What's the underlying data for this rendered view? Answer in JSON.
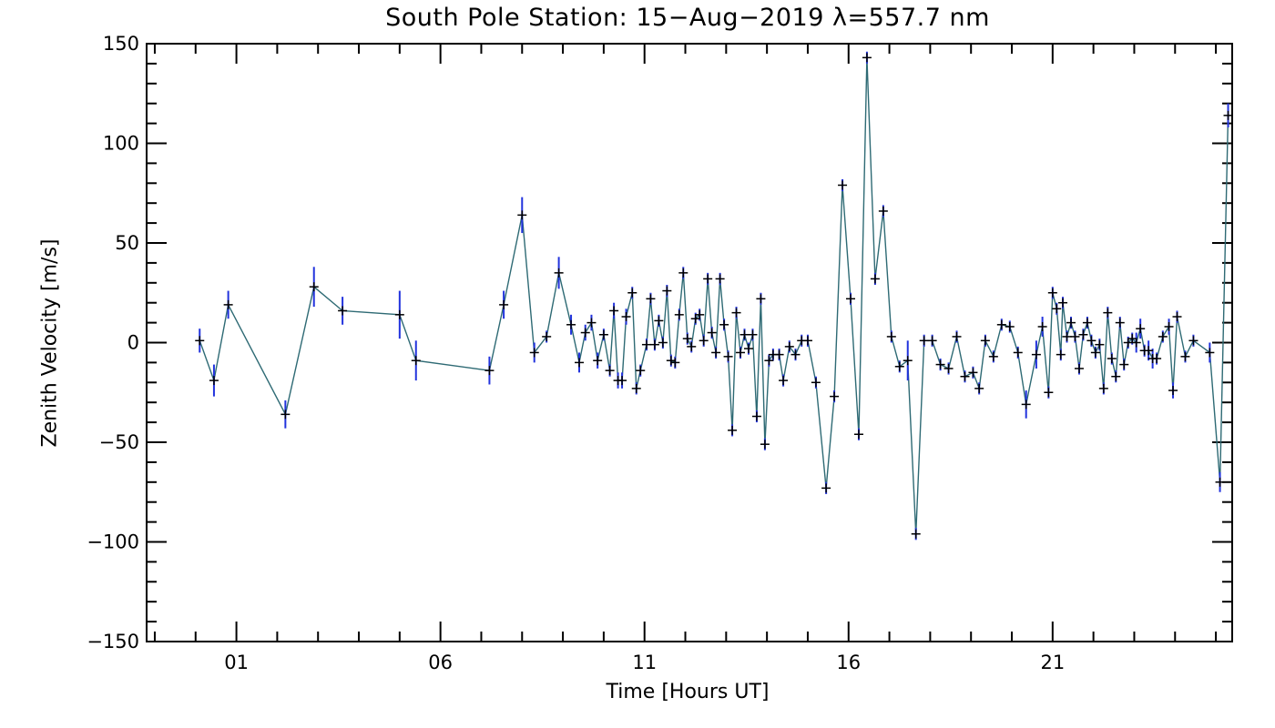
{
  "chart_data": {
    "type": "scatter",
    "title": "South Pole Station: 15−Aug−2019 λ=557.7 nm",
    "xlabel": "Time [Hours UT]",
    "ylabel": "Zenith Velocity [m/s]",
    "xlim": [
      -1.2,
      25.4
    ],
    "ylim": [
      -150,
      150
    ],
    "x_ticks": [
      1,
      6,
      11,
      16,
      21
    ],
    "x_tick_labels": [
      "01",
      "06",
      "11",
      "16",
      "21"
    ],
    "y_ticks": [
      -150,
      -100,
      -50,
      0,
      50,
      100,
      150
    ],
    "y_tick_labels": [
      "−150",
      "−100",
      "−50",
      "0",
      "50",
      "100",
      "150"
    ],
    "grid": false,
    "line_color": "#2e6a74",
    "errorbar_color": "#2233dd",
    "marker_color": "#000000",
    "series": [
      {
        "points": [
          [
            0.1,
            1,
            6
          ],
          [
            0.45,
            -19,
            8
          ],
          [
            0.8,
            19,
            7
          ],
          [
            2.2,
            -36,
            7
          ],
          [
            2.9,
            28,
            10
          ],
          [
            3.6,
            16,
            7
          ],
          [
            5.0,
            14,
            12
          ],
          [
            5.4,
            -9,
            10
          ],
          [
            7.2,
            -14,
            7
          ],
          [
            7.55,
            19,
            7
          ],
          [
            8.0,
            64,
            9
          ],
          [
            8.3,
            -5,
            5
          ],
          [
            8.6,
            3,
            3
          ],
          [
            8.9,
            35,
            8
          ],
          [
            9.2,
            9,
            5
          ],
          [
            9.4,
            -10,
            5
          ],
          [
            9.55,
            5,
            4
          ],
          [
            9.7,
            10,
            4
          ],
          [
            9.85,
            -9,
            4
          ],
          [
            10.0,
            4,
            3
          ],
          [
            10.15,
            -14,
            3
          ],
          [
            10.25,
            16,
            4
          ],
          [
            10.35,
            -19,
            4
          ],
          [
            10.45,
            -19,
            4
          ],
          [
            10.55,
            13,
            4
          ],
          [
            10.7,
            25,
            3
          ],
          [
            10.8,
            -23,
            3
          ],
          [
            10.9,
            -14,
            3
          ],
          [
            11.05,
            -1,
            3
          ],
          [
            11.15,
            22,
            3
          ],
          [
            11.25,
            -1,
            3
          ],
          [
            11.35,
            11,
            3
          ],
          [
            11.45,
            0,
            3
          ],
          [
            11.55,
            26,
            3
          ],
          [
            11.65,
            -9,
            3
          ],
          [
            11.75,
            -10,
            3
          ],
          [
            11.85,
            14,
            3
          ],
          [
            11.95,
            35,
            3
          ],
          [
            12.05,
            2,
            3
          ],
          [
            12.15,
            -2,
            3
          ],
          [
            12.25,
            12,
            3
          ],
          [
            12.35,
            14,
            3
          ],
          [
            12.45,
            1,
            3
          ],
          [
            12.55,
            32,
            3
          ],
          [
            12.65,
            5,
            3
          ],
          [
            12.75,
            -5,
            3
          ],
          [
            12.85,
            32,
            3
          ],
          [
            12.95,
            9,
            3
          ],
          [
            13.05,
            -7,
            3
          ],
          [
            13.15,
            -44,
            3
          ],
          [
            13.25,
            15,
            3
          ],
          [
            13.35,
            -5,
            3
          ],
          [
            13.45,
            4,
            3
          ],
          [
            13.55,
            -3,
            3
          ],
          [
            13.65,
            4,
            3
          ],
          [
            13.75,
            -37,
            3
          ],
          [
            13.85,
            22,
            3
          ],
          [
            13.95,
            -51,
            3
          ],
          [
            14.05,
            -9,
            3
          ],
          [
            14.15,
            -6,
            3
          ],
          [
            14.3,
            -6,
            3
          ],
          [
            14.4,
            -19,
            3
          ],
          [
            14.55,
            -2,
            3
          ],
          [
            14.7,
            -6,
            3
          ],
          [
            14.85,
            1,
            3
          ],
          [
            15.0,
            1,
            3
          ],
          [
            15.2,
            -20,
            3
          ],
          [
            15.45,
            -73,
            3
          ],
          [
            15.65,
            -27,
            3
          ],
          [
            15.85,
            79,
            3
          ],
          [
            16.05,
            22,
            3
          ],
          [
            16.25,
            -46,
            3
          ],
          [
            16.45,
            143,
            3
          ],
          [
            16.65,
            32,
            3
          ],
          [
            16.85,
            66,
            3
          ],
          [
            17.05,
            3,
            3
          ],
          [
            17.25,
            -12,
            3
          ],
          [
            17.45,
            -9,
            10
          ],
          [
            17.65,
            -96,
            3
          ],
          [
            17.85,
            1,
            3
          ],
          [
            18.05,
            1,
            3
          ],
          [
            18.25,
            -11,
            3
          ],
          [
            18.45,
            -13,
            3
          ],
          [
            18.65,
            3,
            3
          ],
          [
            18.85,
            -17,
            3
          ],
          [
            19.05,
            -15,
            3
          ],
          [
            19.2,
            -23,
            3
          ],
          [
            19.35,
            1,
            3
          ],
          [
            19.55,
            -7,
            3
          ],
          [
            19.75,
            9,
            3
          ],
          [
            19.95,
            8,
            3
          ],
          [
            20.15,
            -5,
            3
          ],
          [
            20.35,
            -31,
            7
          ],
          [
            20.6,
            -6,
            7
          ],
          [
            20.75,
            8,
            5
          ],
          [
            20.9,
            -25,
            3
          ],
          [
            21.0,
            25,
            3
          ],
          [
            21.1,
            17,
            3
          ],
          [
            21.2,
            -6,
            3
          ],
          [
            21.25,
            20,
            3
          ],
          [
            21.35,
            3,
            3
          ],
          [
            21.45,
            10,
            3
          ],
          [
            21.55,
            3,
            3
          ],
          [
            21.65,
            -13,
            3
          ],
          [
            21.75,
            4,
            3
          ],
          [
            21.85,
            10,
            3
          ],
          [
            21.95,
            1,
            3
          ],
          [
            22.05,
            -5,
            3
          ],
          [
            22.15,
            -1,
            3
          ],
          [
            22.25,
            -23,
            3
          ],
          [
            22.35,
            15,
            3
          ],
          [
            22.45,
            -8,
            3
          ],
          [
            22.55,
            -17,
            3
          ],
          [
            22.65,
            10,
            3
          ],
          [
            22.75,
            -11,
            3
          ],
          [
            22.85,
            0,
            3
          ],
          [
            22.95,
            2,
            3
          ],
          [
            23.05,
            0,
            5
          ],
          [
            23.15,
            7,
            5
          ],
          [
            23.25,
            -4,
            3
          ],
          [
            23.35,
            -4,
            5
          ],
          [
            23.45,
            -8,
            5
          ],
          [
            23.55,
            -8,
            3
          ],
          [
            23.7,
            3,
            3
          ],
          [
            23.85,
            8,
            4
          ],
          [
            23.95,
            -24,
            4
          ],
          [
            24.05,
            13,
            3
          ],
          [
            24.25,
            -7,
            3
          ],
          [
            24.45,
            1,
            3
          ],
          [
            24.85,
            -5,
            5
          ],
          [
            25.1,
            -70,
            5
          ],
          [
            25.3,
            114,
            6
          ]
        ]
      }
    ]
  }
}
